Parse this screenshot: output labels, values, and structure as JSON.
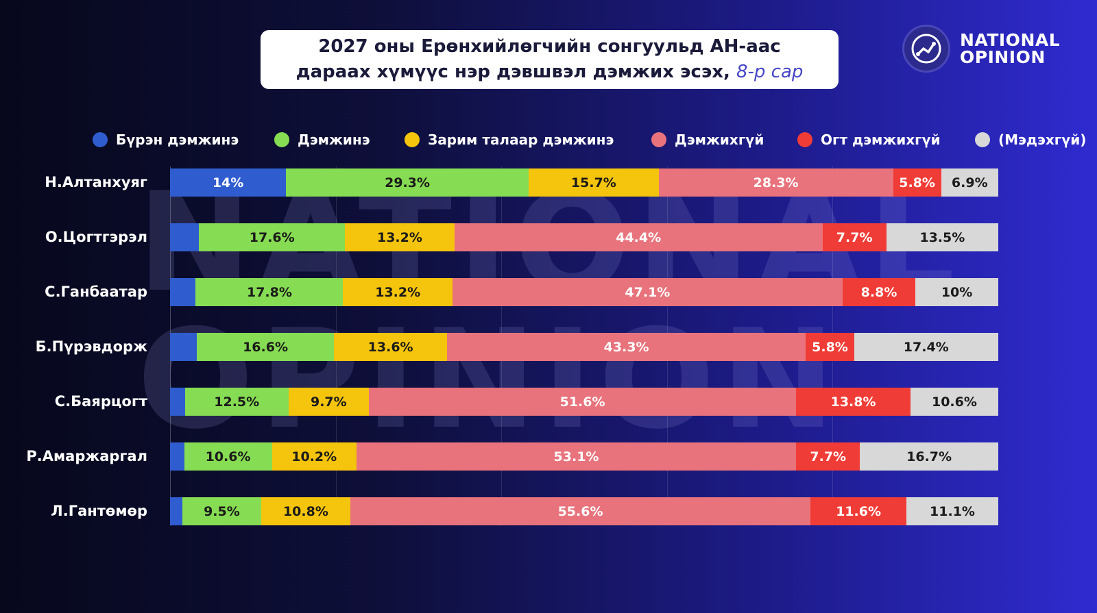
{
  "title": {
    "line1": "2027 оны Ерөнхийлөгчийн сонгуульд АН-аас",
    "line2": "дараах хүмүүс нэр дэвшвэл дэмжих эсэх,",
    "line2_italic": "8-р сар"
  },
  "logo": {
    "line1": "NATIONAL",
    "line2": "OPINION"
  },
  "watermark": {
    "line1": "NATIONAL",
    "line2": "OPINION"
  },
  "colors": {
    "blue": "#2f5dcf",
    "green": "#86dc52",
    "yellow": "#f5c40c",
    "pink": "#e8737c",
    "red": "#f03c36",
    "grey": "#d8d8d8"
  },
  "chart_data": {
    "type": "bar",
    "orientation": "horizontal",
    "stacked": true,
    "legend_position": "top",
    "categories": [
      "Н.Алтанхуяг",
      "О.Цогтгэрэл",
      "С.Ганбаатар",
      "Б.Пүрэвдорж",
      "С.Баярцогт",
      "Р.Амаржаргал",
      "Л.Гантөмөр"
    ],
    "series": [
      {
        "name": "Бүрэн дэмжинэ",
        "color": "#2f5dcf",
        "values": [
          14,
          3.5,
          3.1,
          3.2,
          1.8,
          1.7,
          1.5
        ],
        "labels": [
          "14%",
          "",
          "",
          "",
          "",
          "",
          ""
        ]
      },
      {
        "name": "Дэмжинэ",
        "color": "#86dc52",
        "values": [
          29.3,
          17.6,
          17.8,
          16.6,
          12.5,
          10.6,
          9.5
        ],
        "labels": [
          "29.3%",
          "17.6%",
          "17.8%",
          "16.6%",
          "12.5%",
          "10.6%",
          "9.5%"
        ]
      },
      {
        "name": "Зарим талаар дэмжинэ",
        "color": "#f5c40c",
        "values": [
          15.7,
          13.2,
          13.2,
          13.6,
          9.7,
          10.2,
          10.8
        ],
        "labels": [
          "15.7%",
          "13.2%",
          "13.2%",
          "13.6%",
          "9.7%",
          "10.2%",
          "10.8%"
        ]
      },
      {
        "name": "Дэмжихгүй",
        "color": "#e8737c",
        "values": [
          28.3,
          44.4,
          47.1,
          43.3,
          51.6,
          53.1,
          55.6
        ],
        "labels": [
          "28.3%",
          "44.4%",
          "47.1%",
          "43.3%",
          "51.6%",
          "53.1%",
          "55.6%"
        ]
      },
      {
        "name": "Огт дэмжихгүй",
        "color": "#f03c36",
        "values": [
          5.8,
          7.7,
          8.8,
          5.8,
          13.8,
          7.7,
          11.6
        ],
        "labels": [
          "5.8%",
          "7.7%",
          "8.8%",
          "5.8%",
          "13.8%",
          "7.7%",
          "11.6%"
        ]
      },
      {
        "name": "(Мэдэхгүй)",
        "color": "#d8d8d8",
        "values": [
          6.9,
          13.5,
          10,
          17.4,
          10.6,
          16.7,
          11.1
        ],
        "labels": [
          "6.9%",
          "13.5%",
          "10%",
          "17.4%",
          "10.6%",
          "16.7%",
          "11.1%"
        ]
      }
    ],
    "xlim": [
      0,
      100
    ]
  }
}
